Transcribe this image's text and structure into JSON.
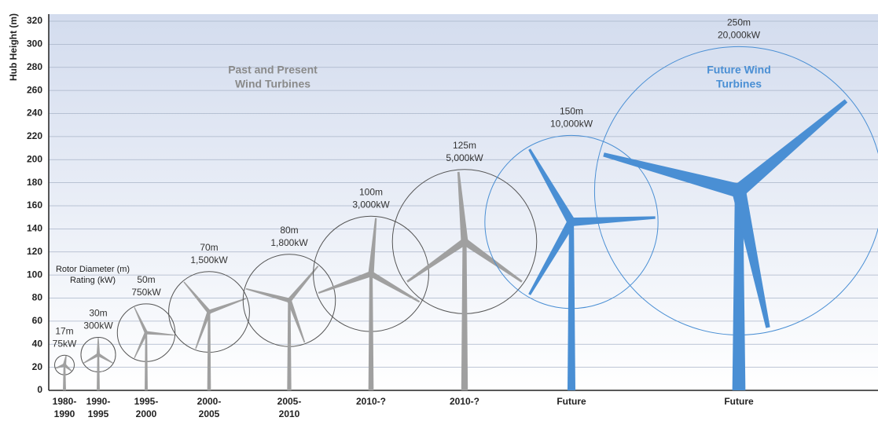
{
  "chart_data": {
    "type": "turbine",
    "y_label": "Hub Height (m)",
    "ylim": [
      0,
      320
    ],
    "yticks": [
      0,
      20,
      40,
      60,
      80,
      100,
      120,
      140,
      160,
      180,
      200,
      220,
      240,
      260,
      280,
      300,
      320
    ],
    "grid": true,
    "categories": [
      [
        "1980-",
        "1990"
      ],
      [
        "1990-",
        "1995"
      ],
      [
        "1995-",
        "2000"
      ],
      [
        "2000-",
        "2005"
      ],
      [
        "2005-",
        "2010"
      ],
      [
        "2010-?"
      ],
      [
        "2010-?"
      ],
      [
        "Future"
      ],
      [
        "Future"
      ]
    ],
    "values": [
      22,
      31,
      50,
      68,
      78,
      101,
      129,
      146,
      173
    ],
    "rotor_diameter": [
      17,
      30,
      50,
      70,
      80,
      100,
      125,
      150,
      250
    ],
    "rotor_diameter_labels": [
      "17m",
      "30m",
      "50m",
      "70m",
      "80m",
      "100m",
      "125m",
      "150m",
      "250m"
    ],
    "rating": [
      75,
      300,
      750,
      1500,
      1800,
      3000,
      5000,
      10000,
      20000
    ],
    "rating_labels": [
      "75kW",
      "300kW",
      "750kW",
      "1,500kW",
      "1,800kW",
      "3,000kW",
      "5,000kW",
      "10,000kW",
      "20,000kW"
    ],
    "colors": [
      "#a0a0a0",
      "#a0a0a0",
      "#a0a0a0",
      "#a0a0a0",
      "#a0a0a0",
      "#a0a0a0",
      "#a0a0a0",
      "#4a8fd4",
      "#4a8fd4"
    ],
    "annotations": {
      "past": [
        "Past and Present",
        "Wind Turbines"
      ],
      "future": [
        "Future Wind",
        "Turbines"
      ],
      "legend": [
        "Rotor Diameter (m)",
        "Rating (kW)"
      ]
    }
  }
}
